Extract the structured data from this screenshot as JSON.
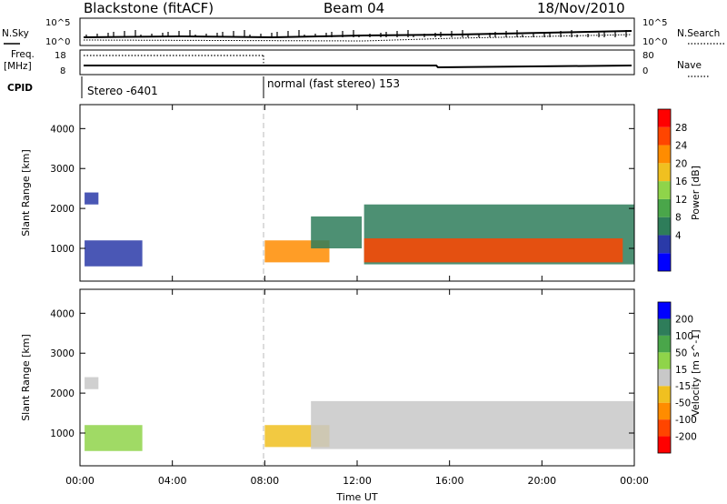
{
  "header": {
    "station": "Blackstone (fitACF)",
    "beam": "Beam 04",
    "date": "18/Nov/2010"
  },
  "status_panel": {
    "nsky_label": "N.Sky",
    "nsearch_label": "N.Search",
    "freq_label_top": "Freq.",
    "freq_label_unit": "[MHz]",
    "nave_label": "Nave",
    "cpid_label": "CPID",
    "nsky_tick_top": "10^5",
    "nsky_tick_bottom": "10^0",
    "nsearch_tick_top": "10^5",
    "nsearch_tick_bottom": "10^0",
    "freq_tick_top": "18",
    "freq_tick_bottom": "8",
    "nave_tick_top": "80",
    "nave_tick_bottom": "0",
    "cpid_segments": [
      {
        "start_hour": 0,
        "label": "Stereo -6401"
      },
      {
        "start_hour": 8,
        "label": "normal (fast stereo) 153"
      }
    ]
  },
  "chart_data": [
    {
      "type": "heatmap",
      "title": "",
      "xlabel": "",
      "ylabel": "Slant Range [km]",
      "xlim_hours": [
        0,
        24
      ],
      "ylim": [
        180,
        4600
      ],
      "x_tick_labels": [
        "00:00",
        "04:00",
        "08:00",
        "12:00",
        "16:00",
        "20:00",
        "00:00"
      ],
      "y_ticks": [
        1000,
        2000,
        3000,
        4000
      ],
      "colorbar": {
        "label": "Power [dB]",
        "ticks": [
          "28",
          "24",
          "20",
          "16",
          "12",
          "8",
          "4"
        ],
        "colors": [
          "#0000ff",
          "#2a3aa8",
          "#2e7d5a",
          "#4aa64a",
          "#8fd44a",
          "#f0c020",
          "#ff8c00",
          "#ff4500",
          "#ff0000"
        ]
      },
      "regions": [
        {
          "hours": [
            0.2,
            0.8
          ],
          "range_km": [
            2100,
            2400
          ],
          "level": 1
        },
        {
          "hours": [
            0.2,
            2.7
          ],
          "range_km": [
            550,
            1200
          ],
          "level": 1
        },
        {
          "hours": [
            8.0,
            10.8
          ],
          "range_km": [
            650,
            1200
          ],
          "level": 6
        },
        {
          "hours": [
            10.0,
            12.2
          ],
          "range_km": [
            1000,
            1800
          ],
          "level": 2
        },
        {
          "hours": [
            12.3,
            24.0
          ],
          "range_km": [
            600,
            2100
          ],
          "level": 2
        },
        {
          "hours": [
            12.3,
            23.5
          ],
          "range_km": [
            650,
            1250
          ],
          "level": 7
        }
      ]
    },
    {
      "type": "heatmap",
      "title": "",
      "xlabel": "Time UT",
      "ylabel": "Slant Range [km]",
      "xlim_hours": [
        0,
        24
      ],
      "ylim": [
        180,
        4600
      ],
      "x_tick_labels": [
        "00:00",
        "04:00",
        "08:00",
        "12:00",
        "16:00",
        "20:00",
        "00:00"
      ],
      "y_ticks": [
        1000,
        2000,
        3000,
        4000
      ],
      "colorbar": {
        "label": "Velocity [m s^-1]",
        "ticks": [
          "200",
          "100",
          "50",
          "15",
          "-15",
          "-50",
          "-100",
          "-200"
        ],
        "colors": [
          "#ff0000",
          "#ff4500",
          "#ff8c00",
          "#f0c020",
          "#c8c8c8",
          "#8fd44a",
          "#4aa64a",
          "#2e7d5a",
          "#0000ff"
        ]
      },
      "regions": [
        {
          "hours": [
            0.2,
            0.8
          ],
          "range_km": [
            2100,
            2400
          ],
          "level": 4
        },
        {
          "hours": [
            0.2,
            2.7
          ],
          "range_km": [
            550,
            1200
          ],
          "level": 5
        },
        {
          "hours": [
            8.0,
            10.8
          ],
          "range_km": [
            650,
            1200
          ],
          "level": 3
        },
        {
          "hours": [
            10.0,
            24.0
          ],
          "range_km": [
            600,
            1800
          ],
          "level": 4
        }
      ]
    }
  ]
}
